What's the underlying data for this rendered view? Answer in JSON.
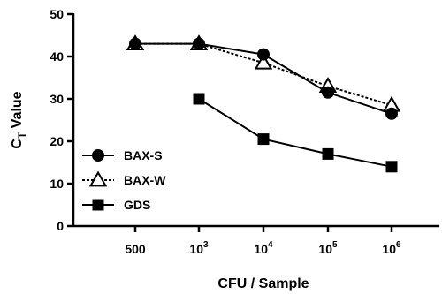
{
  "chart_data": {
    "type": "line",
    "title": "",
    "categories": [
      {
        "base": "500",
        "exp": ""
      },
      {
        "base": "10",
        "exp": "3"
      },
      {
        "base": "10",
        "exp": "4"
      },
      {
        "base": "10",
        "exp": "5"
      },
      {
        "base": "10",
        "exp": "6"
      }
    ],
    "xlabel": "CFU / Sample",
    "ylabel": {
      "main": "C",
      "sub": "T",
      "rest": " Value"
    },
    "ylim": [
      0,
      50
    ],
    "yticks": [
      "0",
      "10",
      "20",
      "30",
      "40",
      "50"
    ],
    "grid": false,
    "legend_position": "bottom-left",
    "series": [
      {
        "name": "BAX-S",
        "marker": "circle-filled",
        "line": "solid",
        "values": [
          43,
          43,
          40.5,
          31.5,
          26.5
        ]
      },
      {
        "name": "BAX-W",
        "marker": "triangle-open",
        "line": "dashed",
        "values": [
          43,
          43,
          38.5,
          33,
          28.5
        ]
      },
      {
        "name": "GDS",
        "marker": "square-filled",
        "line": "solid",
        "values": [
          null,
          30,
          20.5,
          17,
          14
        ]
      }
    ]
  }
}
